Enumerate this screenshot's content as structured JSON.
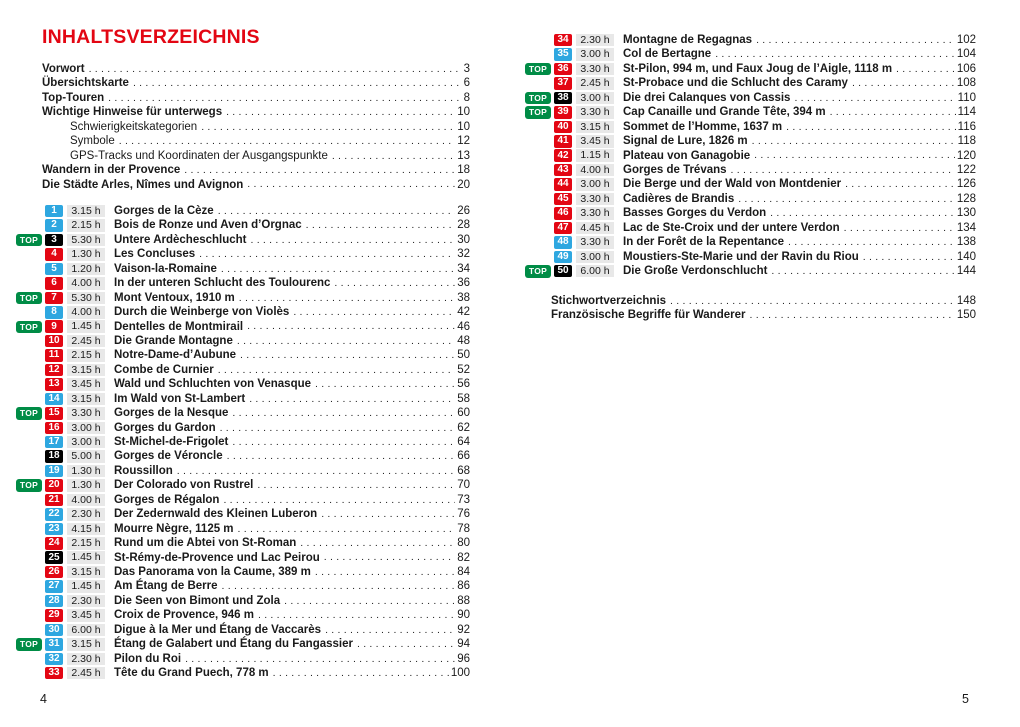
{
  "page": {
    "title": "INHALTSVERZEICHNIS",
    "left_page_number": "4",
    "right_page_number": "5",
    "top_badge_label": "TOP"
  },
  "colors": {
    "accent_red": "#e30613",
    "badge_blue": "#2ea7e0",
    "badge_red": "#e30613",
    "badge_black": "#000000",
    "top_green": "#008c46",
    "duration_bg": "#e8e8e8"
  },
  "front_matter": [
    {
      "label": "Vorwort",
      "page": "3",
      "bold": true,
      "indent": false
    },
    {
      "label": "Übersichtskarte",
      "page": "6",
      "bold": true,
      "indent": false
    },
    {
      "label": "Top-Touren",
      "page": "8",
      "bold": true,
      "indent": false
    },
    {
      "label": "Wichtige Hinweise für unterwegs",
      "page": "10",
      "bold": true,
      "indent": false
    },
    {
      "label": "Schwierigkeitskategorien",
      "page": "10",
      "bold": false,
      "indent": true
    },
    {
      "label": "Symbole",
      "page": "12",
      "bold": false,
      "indent": true
    },
    {
      "label": "GPS-Tracks und Koordinaten der Ausgangspunkte",
      "page": "13",
      "bold": false,
      "indent": true
    },
    {
      "label": "Wandern in der Provence",
      "page": "18",
      "bold": true,
      "indent": false
    },
    {
      "label": "Die Städte Arles, Nîmes und Avignon",
      "page": "20",
      "bold": true,
      "indent": false
    }
  ],
  "tours_left": [
    {
      "number": "1",
      "badge": "blue",
      "top": false,
      "duration": "3.15 h",
      "title": "Gorges de la Cèze",
      "page": "26"
    },
    {
      "number": "2",
      "badge": "blue",
      "top": false,
      "duration": "2.15 h",
      "title": "Bois de Ronze und Aven d’Orgnac",
      "page": "28"
    },
    {
      "number": "3",
      "badge": "black",
      "top": true,
      "duration": "5.30 h",
      "title": "Untere Ardècheschlucht",
      "page": "30"
    },
    {
      "number": "4",
      "badge": "red",
      "top": false,
      "duration": "1.30 h",
      "title": "Les Concluses",
      "page": "32"
    },
    {
      "number": "5",
      "badge": "blue",
      "top": false,
      "duration": "1.20 h",
      "title": "Vaison-la-Romaine",
      "page": "34"
    },
    {
      "number": "6",
      "badge": "red",
      "top": false,
      "duration": "4.00 h",
      "title": "In der unteren Schlucht des Toulourenc",
      "page": "36"
    },
    {
      "number": "7",
      "badge": "red",
      "top": true,
      "duration": "5.30 h",
      "title": "Mont Ventoux, 1910 m",
      "page": "38"
    },
    {
      "number": "8",
      "badge": "blue",
      "top": false,
      "duration": "4.00 h",
      "title": "Durch die Weinberge von Violès",
      "page": "42"
    },
    {
      "number": "9",
      "badge": "red",
      "top": true,
      "duration": "1.45 h",
      "title": "Dentelles de Montmirail",
      "page": "46"
    },
    {
      "number": "10",
      "badge": "red",
      "top": false,
      "duration": "2.45 h",
      "title": "Die Grande Montagne",
      "page": "48"
    },
    {
      "number": "11",
      "badge": "red",
      "top": false,
      "duration": "2.15 h",
      "title": "Notre-Dame-d’Aubune",
      "page": "50"
    },
    {
      "number": "12",
      "badge": "red",
      "top": false,
      "duration": "3.15 h",
      "title": "Combe de Curnier",
      "page": "52"
    },
    {
      "number": "13",
      "badge": "red",
      "top": false,
      "duration": "3.45 h",
      "title": "Wald und Schluchten von Venasque",
      "page": "56"
    },
    {
      "number": "14",
      "badge": "blue",
      "top": false,
      "duration": "3.15 h",
      "title": "Im Wald von St-Lambert",
      "page": "58"
    },
    {
      "number": "15",
      "badge": "red",
      "top": true,
      "duration": "3.30 h",
      "title": "Gorges de la Nesque",
      "page": "60"
    },
    {
      "number": "16",
      "badge": "red",
      "top": false,
      "duration": "3.00 h",
      "title": "Gorges du Gardon",
      "page": "62"
    },
    {
      "number": "17",
      "badge": "blue",
      "top": false,
      "duration": "3.00 h",
      "title": "St-Michel-de-Frigolet",
      "page": "64"
    },
    {
      "number": "18",
      "badge": "black",
      "top": false,
      "duration": "5.00 h",
      "title": "Gorges de Véroncle",
      "page": "66"
    },
    {
      "number": "19",
      "badge": "blue",
      "top": false,
      "duration": "1.30 h",
      "title": "Roussillon",
      "page": "68"
    },
    {
      "number": "20",
      "badge": "red",
      "top": true,
      "duration": "1.30 h",
      "title": "Der Colorado von Rustrel",
      "page": "70"
    },
    {
      "number": "21",
      "badge": "red",
      "top": false,
      "duration": "4.00 h",
      "title": "Gorges de Régalon",
      "page": "73"
    },
    {
      "number": "22",
      "badge": "blue",
      "top": false,
      "duration": "2.30 h",
      "title": "Der Zedernwald des Kleinen Luberon",
      "page": "76"
    },
    {
      "number": "23",
      "badge": "blue",
      "top": false,
      "duration": "4.15 h",
      "title": "Mourre Nègre, 1125 m",
      "page": "78"
    },
    {
      "number": "24",
      "badge": "red",
      "top": false,
      "duration": "2.15 h",
      "title": "Rund um die Abtei von St-Roman",
      "page": "80"
    },
    {
      "number": "25",
      "badge": "black",
      "top": false,
      "duration": "1.45 h",
      "title": "St-Rémy-de-Provence und Lac Peirou",
      "page": "82"
    },
    {
      "number": "26",
      "badge": "red",
      "top": false,
      "duration": "3.15 h",
      "title": "Das Panorama von la Caume, 389 m",
      "page": "84"
    },
    {
      "number": "27",
      "badge": "blue",
      "top": false,
      "duration": "1.45 h",
      "title": "Am Étang de Berre",
      "page": "86"
    },
    {
      "number": "28",
      "badge": "blue",
      "top": false,
      "duration": "2.30 h",
      "title": "Die Seen von Bimont und Zola",
      "page": "88"
    },
    {
      "number": "29",
      "badge": "red",
      "top": false,
      "duration": "3.45 h",
      "title": "Croix de Provence, 946 m",
      "page": "90"
    },
    {
      "number": "30",
      "badge": "blue",
      "top": false,
      "duration": "6.00 h",
      "title": "Digue à la Mer und Étang de Vaccarès",
      "page": "92"
    },
    {
      "number": "31",
      "badge": "blue",
      "top": true,
      "duration": "3.15 h",
      "title": "Étang de Galabert und Étang du Fangassier",
      "page": "94"
    },
    {
      "number": "32",
      "badge": "blue",
      "top": false,
      "duration": "2.30 h",
      "title": "Pilon du Roi",
      "page": "96"
    },
    {
      "number": "33",
      "badge": "red",
      "top": false,
      "duration": "2.45 h",
      "title": "Tête du Grand Puech, 778 m",
      "page": "100"
    }
  ],
  "tours_right": [
    {
      "number": "34",
      "badge": "red",
      "top": false,
      "duration": "2.30 h",
      "title": "Montagne de Regagnas",
      "page": "102"
    },
    {
      "number": "35",
      "badge": "blue",
      "top": false,
      "duration": "3.00 h",
      "title": "Col de Bertagne",
      "page": "104"
    },
    {
      "number": "36",
      "badge": "red",
      "top": true,
      "duration": "3.30 h",
      "title": "St-Pilon, 994 m, und Faux Joug de l’Aigle, 1118 m",
      "page": "106"
    },
    {
      "number": "37",
      "badge": "red",
      "top": false,
      "duration": "2.45 h",
      "title": "St-Probace und die Schlucht des Caramy",
      "page": "108"
    },
    {
      "number": "38",
      "badge": "black",
      "top": true,
      "duration": "3.00 h",
      "title": "Die drei Calanques von Cassis",
      "page": "110"
    },
    {
      "number": "39",
      "badge": "red",
      "top": true,
      "duration": "3.30 h",
      "title": "Cap Canaille und Grande Tête, 394 m",
      "page": "114"
    },
    {
      "number": "40",
      "badge": "red",
      "top": false,
      "duration": "3.15 h",
      "title": "Sommet de l’Homme, 1637 m",
      "page": "116"
    },
    {
      "number": "41",
      "badge": "red",
      "top": false,
      "duration": "3.45 h",
      "title": "Signal de Lure, 1826 m",
      "page": "118"
    },
    {
      "number": "42",
      "badge": "red",
      "top": false,
      "duration": "1.15 h",
      "title": "Plateau von Ganagobie",
      "page": "120"
    },
    {
      "number": "43",
      "badge": "red",
      "top": false,
      "duration": "4.00 h",
      "title": "Gorges de Trévans",
      "page": "122"
    },
    {
      "number": "44",
      "badge": "red",
      "top": false,
      "duration": "3.00 h",
      "title": "Die Berge und der Wald von Montdenier",
      "page": "126"
    },
    {
      "number": "45",
      "badge": "red",
      "top": false,
      "duration": "3.30 h",
      "title": "Cadières de Brandis",
      "page": "128"
    },
    {
      "number": "46",
      "badge": "red",
      "top": false,
      "duration": "3.30 h",
      "title": "Basses Gorges du Verdon",
      "page": "130"
    },
    {
      "number": "47",
      "badge": "red",
      "top": false,
      "duration": "4.45 h",
      "title": "Lac de Ste-Croix und der untere Verdon",
      "page": "134"
    },
    {
      "number": "48",
      "badge": "blue",
      "top": false,
      "duration": "3.30 h",
      "title": "In der Forêt de la Repentance",
      "page": "138"
    },
    {
      "number": "49",
      "badge": "blue",
      "top": false,
      "duration": "3.00 h",
      "title": "Moustiers-Ste-Marie und der Ravin du Riou",
      "page": "140"
    },
    {
      "number": "50",
      "badge": "black",
      "top": true,
      "duration": "6.00 h",
      "title": "Die Große Verdonschlucht",
      "page": "144"
    }
  ],
  "back_matter": [
    {
      "label": "Stichwortverzeichnis",
      "page": "148",
      "bold": true,
      "indent": false
    },
    {
      "label": "Französische Begriffe für Wanderer",
      "page": "150",
      "bold": true,
      "indent": false
    }
  ]
}
